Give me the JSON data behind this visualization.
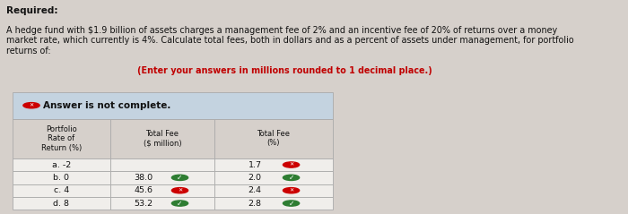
{
  "title_required": "Required:",
  "desc_normal": "A hedge fund with $1.9 billion of assets charges a management fee of 2% and an incentive fee of 20% of returns over a money\nmarket rate, which currently is 4%. Calculate total fees, both in dollars and as a percent of assets under management, for portfolio\nreturns of: ",
  "desc_highlight": "(Enter your answers in millions rounded to 1 decimal place.)",
  "answer_banner": "Answer is not complete.",
  "col_headers": [
    "Portfolio\nRate of\nReturn (%)",
    "Total Fee\n($ million)",
    "Total Fee\n(%)"
  ],
  "rows": [
    {
      "label": "a. -2",
      "fee_dollar": "",
      "fee_pct": "1.7",
      "dollar_icon": null,
      "pct_icon": "red"
    },
    {
      "label": "b. 0",
      "fee_dollar": "38.0",
      "fee_pct": "2.0",
      "dollar_icon": "green",
      "pct_icon": "green"
    },
    {
      "label": "c. 4",
      "fee_dollar": "45.6",
      "fee_pct": "2.4",
      "dollar_icon": "red",
      "pct_icon": "red"
    },
    {
      "label": "d. 8",
      "fee_dollar": "53.2",
      "fee_pct": "2.8",
      "dollar_icon": "green",
      "pct_icon": "green"
    }
  ],
  "bg_color": "#d6d0cb",
  "table_bg": "#f0eeeb",
  "header_bg": "#d6d0cb",
  "banner_bg": "#c4d3e0",
  "text_color": "#111111",
  "highlight_color": "#c00000",
  "border_color": "#aaaaaa",
  "green_color": "#2e7d32",
  "red_color": "#cc0000"
}
